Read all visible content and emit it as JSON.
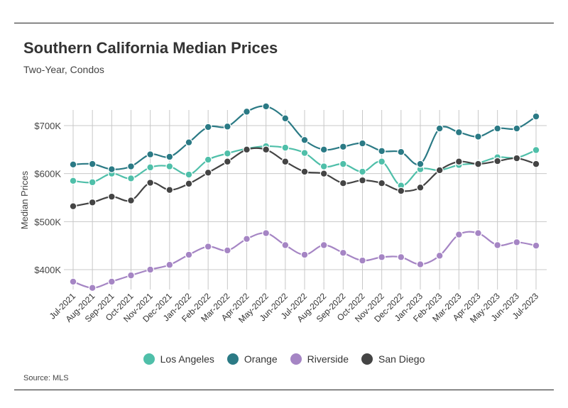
{
  "header": {
    "title": "Southern California Median Prices",
    "subtitle": "Two-Year, Condos"
  },
  "footer": {
    "source": "Source: MLS"
  },
  "chart_data": {
    "type": "line",
    "title": "Southern California Median Prices",
    "subtitle": "Two-Year, Condos",
    "xlabel": "",
    "ylabel": "Median Prices",
    "ylim": [
      350000,
      750000
    ],
    "y_ticks": [
      400000,
      500000,
      600000,
      700000
    ],
    "y_tick_labels": [
      "$400K",
      "$500K",
      "$600K",
      "$700K"
    ],
    "grid": "vertical and horizontal",
    "legend_position": "bottom",
    "categories": [
      "Jul-2021",
      "Aug-2021",
      "Sep-2021",
      "Oct-2021",
      "Nov-2021",
      "Dec-2021",
      "Jan-2022",
      "Feb-2022",
      "Mar-2022",
      "Apr-2022",
      "May-2022",
      "Jun-2022",
      "Jul-2022",
      "Aug-2022",
      "Sep-2022",
      "Oct-2022",
      "Nov-2022",
      "Dec-2022",
      "Jan-2023",
      "Feb-2023",
      "Mar-2023",
      "Apr-2023",
      "May-2023",
      "Jun-2023",
      "Jul-2023"
    ],
    "series": [
      {
        "name": "Los Angeles",
        "color": "#4fbfa9",
        "values": [
          585000,
          582000,
          600000,
          590000,
          613000,
          615000,
          598000,
          629000,
          642000,
          652000,
          657000,
          654000,
          643000,
          615000,
          620000,
          604000,
          625000,
          575000,
          609000,
          607000,
          618000,
          622000,
          634000,
          633000,
          649000
        ]
      },
      {
        "name": "Orange",
        "color": "#2b7a85",
        "values": [
          619000,
          620000,
          609000,
          615000,
          640000,
          635000,
          665000,
          697000,
          698000,
          729000,
          740000,
          715000,
          670000,
          650000,
          656000,
          663000,
          647000,
          645000,
          620000,
          694000,
          686000,
          677000,
          694000,
          694000,
          719000
        ]
      },
      {
        "name": "Riverside",
        "color": "#a585c4",
        "values": [
          375000,
          362000,
          375000,
          388000,
          400000,
          410000,
          431000,
          448000,
          440000,
          464000,
          476000,
          451000,
          431000,
          451000,
          435000,
          419000,
          426000,
          426000,
          411000,
          429000,
          473000,
          476000,
          451000,
          457000,
          450000
        ]
      },
      {
        "name": "San Diego",
        "color": "#444444",
        "values": [
          532000,
          540000,
          552000,
          544000,
          581000,
          566000,
          579000,
          602000,
          625000,
          650000,
          650000,
          625000,
          604000,
          600000,
          580000,
          586000,
          580000,
          564000,
          571000,
          607000,
          625000,
          620000,
          626000,
          632000,
          620000
        ]
      }
    ]
  }
}
